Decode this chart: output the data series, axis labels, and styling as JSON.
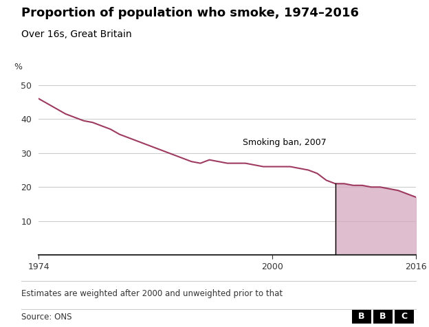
{
  "title": "Proportion of population who smoke, 1974–2016",
  "subtitle": "Over 16s, Great Britain",
  "ylabel": "%",
  "footer_note": "Estimates are weighted after 2000 and unweighted prior to that",
  "source": "Source: ONS",
  "ban_year": 2007,
  "ban_label": "Smoking ban, 2007",
  "ylim": [
    0,
    50
  ],
  "yticks": [
    0,
    10,
    20,
    30,
    40,
    50
  ],
  "xlim": [
    1974,
    2016
  ],
  "xticks": [
    1974,
    2000,
    2016
  ],
  "line_color": "#9e3a5f",
  "fill_color": "#d4a8bf",
  "fill_alpha": 0.75,
  "background_color": "#ffffff",
  "grid_color": "#cccccc",
  "years": [
    1974,
    1975,
    1976,
    1977,
    1978,
    1979,
    1980,
    1981,
    1982,
    1983,
    1984,
    1985,
    1986,
    1987,
    1988,
    1989,
    1990,
    1991,
    1992,
    1993,
    1994,
    1995,
    1996,
    1997,
    1998,
    1999,
    2000,
    2001,
    2002,
    2003,
    2004,
    2005,
    2006,
    2007,
    2008,
    2009,
    2010,
    2011,
    2012,
    2013,
    2014,
    2015,
    2016
  ],
  "values": [
    46,
    44.5,
    43,
    41.5,
    40.5,
    39.5,
    39,
    38,
    37,
    35.5,
    34.5,
    33.5,
    32.5,
    31.5,
    30.5,
    29.5,
    28.5,
    27.5,
    27,
    28,
    27.5,
    27,
    27,
    27,
    26.5,
    26,
    26,
    26,
    26,
    25.5,
    25,
    24,
    22,
    21,
    21,
    20.5,
    20.5,
    20,
    20,
    19.5,
    19,
    18,
    17
  ]
}
